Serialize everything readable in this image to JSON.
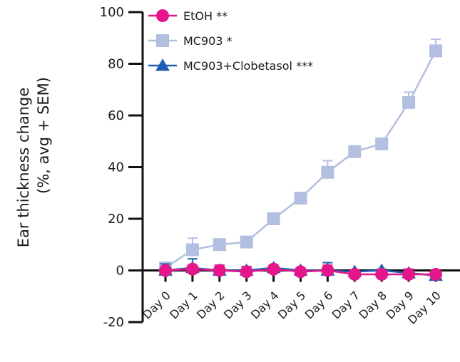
{
  "chart_data": {
    "type": "line",
    "categories": [
      "Day 0",
      "Day 1",
      "Day 2",
      "Day 3",
      "Day 4",
      "Day 5",
      "Day 6",
      "Day 7",
      "Day 8",
      "Day 9",
      "Day 10"
    ],
    "ylabel": "Ear thickness change",
    "ylabel_sub": "(%, avg + SEM)",
    "ylim": [
      -20,
      100
    ],
    "yticks": [
      -20,
      0,
      20,
      40,
      60,
      80,
      100
    ],
    "ytick_labels": [
      "-20",
      "0",
      "20",
      "40",
      "60",
      "80",
      "100"
    ],
    "grid": false,
    "legend_position": "top-left",
    "series": [
      {
        "name": "MC903 *",
        "color": "#b3bfe0",
        "marker": "square",
        "values": [
          1,
          8,
          10,
          11,
          20,
          28,
          38,
          46,
          49,
          65,
          85
        ],
        "sem": [
          1,
          4.5,
          1,
          1,
          1,
          1,
          4.5,
          1,
          1,
          4,
          4.5
        ]
      },
      {
        "name": "MC903+Clobetasol ***",
        "color": "#1c5fb0",
        "marker": "triangle",
        "values": [
          0,
          1,
          0,
          0,
          1,
          0,
          0,
          -0.5,
          0,
          -1,
          -2
        ],
        "sem": [
          2.5,
          3.5,
          2,
          1.5,
          1,
          0.5,
          3,
          0.5,
          0.5,
          1.5,
          0.5
        ]
      },
      {
        "name": "EtOH **",
        "color": "#e5168c",
        "marker": "circle",
        "values": [
          0,
          0.5,
          0,
          -0.5,
          0.5,
          -0.5,
          0,
          -1.5,
          -1.5,
          -1.5,
          -1.5
        ],
        "sem": [
          1.5,
          1.5,
          2,
          2,
          1,
          0.5,
          2,
          0.5,
          0.5,
          2,
          0.5
        ]
      }
    ],
    "legend_order": [
      "EtOH **",
      "MC903 *",
      "MC903+Clobetasol ***"
    ]
  }
}
